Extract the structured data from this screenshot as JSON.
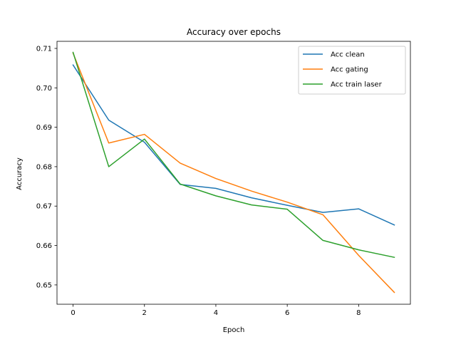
{
  "chart_data": {
    "type": "line",
    "title": "Accuracy over epochs",
    "xlabel": "Epoch",
    "ylabel": "Accuracy",
    "xlim": [
      -0.45,
      9.45
    ],
    "ylim": [
      0.6451,
      0.7118
    ],
    "xticks": [
      0,
      2,
      4,
      6,
      8
    ],
    "yticks": [
      0.65,
      0.66,
      0.67,
      0.68,
      0.69,
      0.7,
      0.71
    ],
    "ytick_labels": [
      "0.65",
      "0.66",
      "0.67",
      "0.68",
      "0.69",
      "0.70",
      "0.71"
    ],
    "grid": false,
    "legend_position": "top-right",
    "x": [
      0,
      1,
      2,
      3,
      4,
      5,
      6,
      7,
      8,
      9
    ],
    "series": [
      {
        "name": "Acc clean",
        "color": "#1f77b4",
        "values": [
          0.7058,
          0.6918,
          0.6862,
          0.6755,
          0.6745,
          0.6721,
          0.6702,
          0.6684,
          0.6693,
          0.6652
        ]
      },
      {
        "name": "Acc gating",
        "color": "#ff7f0e",
        "values": [
          0.7088,
          0.686,
          0.6882,
          0.6809,
          0.677,
          0.6738,
          0.671,
          0.6678,
          0.6575,
          0.6481
        ]
      },
      {
        "name": "Acc train laser",
        "color": "#2ca02c",
        "values": [
          0.709,
          0.68,
          0.687,
          0.6756,
          0.6726,
          0.6703,
          0.6692,
          0.6613,
          0.6589,
          0.657
        ]
      }
    ]
  }
}
